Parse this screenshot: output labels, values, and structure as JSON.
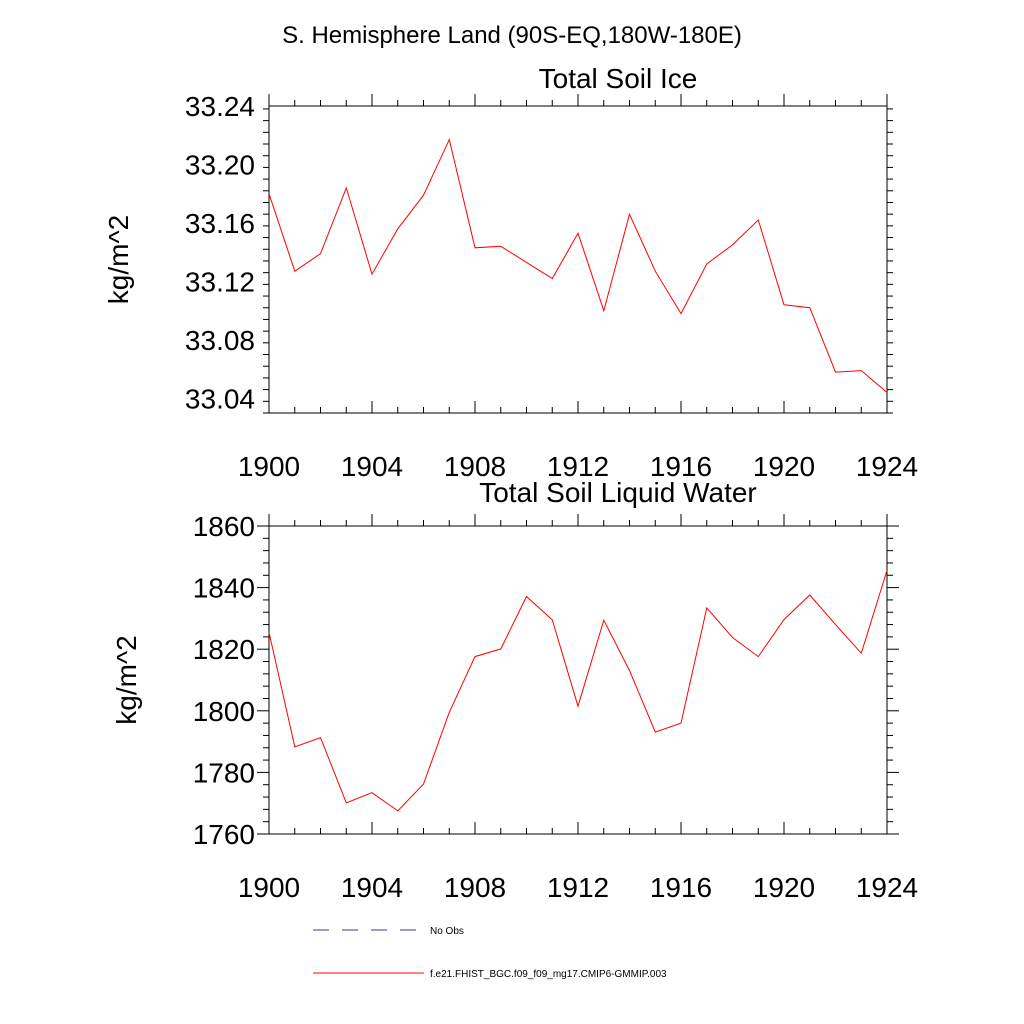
{
  "header": {
    "title": "S. Hemisphere Land (90S-EQ,180W-180E)"
  },
  "chart_data": [
    {
      "type": "line",
      "title": "Total Soil Ice",
      "ylabel": "kg/m^2",
      "xlabel": "",
      "xlim": [
        1900,
        1924
      ],
      "ylim": [
        33.03,
        33.24
      ],
      "x_ticks": [
        1900,
        1904,
        1908,
        1912,
        1916,
        1920,
        1924
      ],
      "x_tick_labels": [
        "1900",
        "1904",
        "1908",
        "1912",
        "1916",
        "1920",
        "1924"
      ],
      "y_ticks": [
        33.04,
        33.08,
        33.12,
        33.16,
        33.2,
        33.24
      ],
      "y_tick_labels": [
        "33.04",
        "33.08",
        "33.12",
        "33.16",
        "33.20",
        "33.24"
      ],
      "grid": false,
      "x": [
        1900,
        1901,
        1902,
        1903,
        1904,
        1905,
        1906,
        1907,
        1908,
        1909,
        1910,
        1911,
        1912,
        1913,
        1914,
        1915,
        1916,
        1917,
        1918,
        1919,
        1920,
        1921,
        1922,
        1923,
        1924
      ],
      "series": [
        {
          "name": "f.e21.FHIST_BGC.f09_f09_mg17.CMIP6-GMMIP.003",
          "color": "#ff0000",
          "values": [
            33.18,
            33.127,
            33.139,
            33.184,
            33.125,
            33.156,
            33.179,
            33.217,
            33.143,
            33.144,
            33.133,
            33.122,
            33.153,
            33.1,
            33.166,
            33.127,
            33.098,
            33.132,
            33.145,
            33.162,
            33.104,
            33.102,
            33.058,
            33.059,
            33.044
          ]
        }
      ]
    },
    {
      "type": "line",
      "title": "Total Soil Liquid Water",
      "ylabel": "kg/m^2",
      "xlabel": "",
      "xlim": [
        1900,
        1924
      ],
      "ylim": [
        1760,
        1860
      ],
      "x_ticks": [
        1900,
        1904,
        1908,
        1912,
        1916,
        1920,
        1924
      ],
      "x_tick_labels": [
        "1900",
        "1904",
        "1908",
        "1912",
        "1916",
        "1920",
        "1924"
      ],
      "y_ticks": [
        1760,
        1780,
        1800,
        1820,
        1840,
        1860
      ],
      "y_tick_labels": [
        "1760",
        "1780",
        "1800",
        "1820",
        "1840",
        "1860"
      ],
      "grid": false,
      "x": [
        1900,
        1901,
        1902,
        1903,
        1904,
        1905,
        1906,
        1907,
        1908,
        1909,
        1910,
        1911,
        1912,
        1913,
        1914,
        1915,
        1916,
        1917,
        1918,
        1919,
        1920,
        1921,
        1922,
        1923,
        1924
      ],
      "series": [
        {
          "name": "f.e21.FHIST_BGC.f09_f09_mg17.CMIP6-GMMIP.003",
          "color": "#ff0000",
          "values": [
            1825.5,
            1788.3,
            1791.3,
            1770.1,
            1773.4,
            1767.5,
            1776.2,
            1799.5,
            1817.6,
            1820.1,
            1837.1,
            1829.5,
            1801.5,
            1829.4,
            1813.1,
            1793.1,
            1796.0,
            1833.4,
            1823.8,
            1817.6,
            1829.6,
            1837.6,
            1828.0,
            1818.7,
            1845.6
          ]
        }
      ]
    }
  ],
  "legend": {
    "placement": "bottom",
    "entries": [
      {
        "label": "No Obs",
        "style": "dashed",
        "color": "#3a3a8c"
      },
      {
        "label": "f.e21.FHIST_BGC.f09_f09_mg17.CMIP6-GMMIP.003",
        "style": "solid",
        "color": "#ff0000"
      }
    ]
  }
}
